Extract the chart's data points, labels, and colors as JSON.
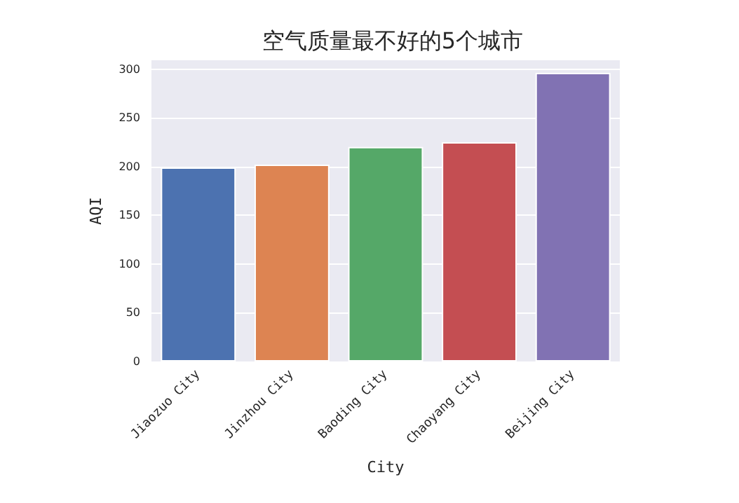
{
  "chart_data": {
    "type": "bar",
    "title": "空气质量最不好的5个城市",
    "xlabel": "City",
    "ylabel": "AQI",
    "categories": [
      "Jiaozuo City",
      "Jinzhou City",
      "Baoding City",
      "Chaoyang City",
      "Beijing City"
    ],
    "values": [
      199,
      202,
      220,
      225,
      296
    ],
    "colors": [
      "#4c72b0",
      "#dd8452",
      "#55a868",
      "#c44e52",
      "#8172b3"
    ],
    "ylim": [
      0,
      309
    ],
    "yticks": [
      0,
      50,
      100,
      150,
      200,
      250,
      300
    ],
    "grid": "y"
  }
}
